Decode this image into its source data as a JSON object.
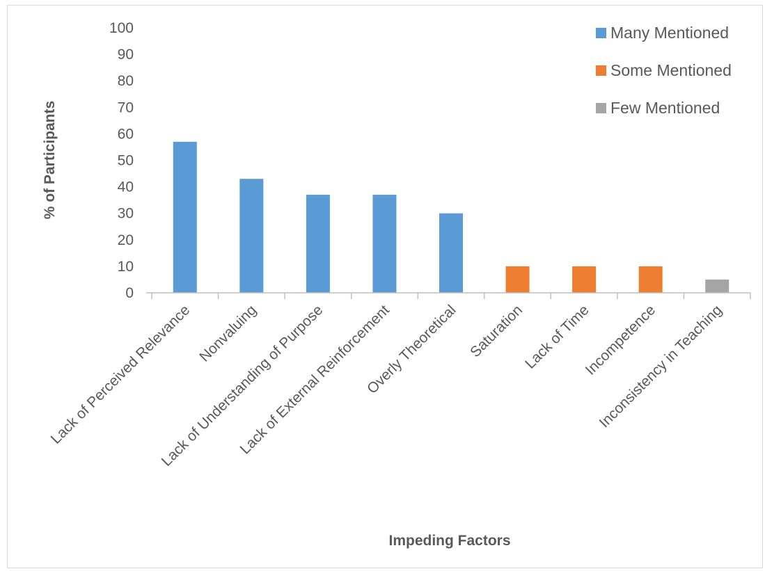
{
  "chart_data": {
    "type": "bar",
    "title": "",
    "xlabel": "Impeding Factors",
    "ylabel": "% of Participants",
    "ylim": [
      0,
      100
    ],
    "yticks": [
      0,
      10,
      20,
      30,
      40,
      50,
      60,
      70,
      80,
      90,
      100
    ],
    "grid": false,
    "legend_position": "top-right",
    "categories": [
      "Lack of Perceived Relevance",
      "Nonvaluing",
      "Lack of Understanding of Purpose",
      "Lack of External Reinforcement",
      "Overly Theoretical",
      "Saturation",
      "Lack of Time",
      "Incompetence",
      "Inconsistency in Teaching"
    ],
    "values": [
      57,
      43,
      37,
      37,
      30,
      10,
      10,
      10,
      5
    ],
    "groups": [
      "Many Mentioned",
      "Many Mentioned",
      "Many Mentioned",
      "Many Mentioned",
      "Many Mentioned",
      "Some Mentioned",
      "Some Mentioned",
      "Some Mentioned",
      "Few Mentioned"
    ],
    "series": [
      {
        "name": "Many Mentioned",
        "color": "#5b9bd5"
      },
      {
        "name": "Some Mentioned",
        "color": "#ed7d31"
      },
      {
        "name": "Few Mentioned",
        "color": "#a5a5a5"
      }
    ]
  }
}
